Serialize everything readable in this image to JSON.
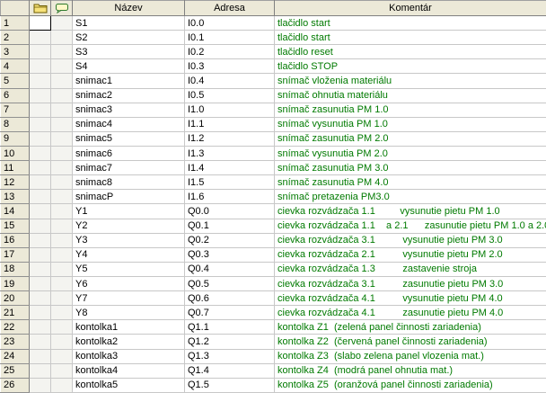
{
  "columns": {
    "name": "Název",
    "address": "Adresa",
    "comment": "Komentár"
  },
  "icons": {
    "col1": "folder-icon",
    "col2": "comment-icon"
  },
  "colors": {
    "comment_text": "#007a00",
    "header_bg": "#ece9d8"
  },
  "rows": [
    {
      "n": "1",
      "name": "S1",
      "addr": "I0.0",
      "comment": "tlačidlo start"
    },
    {
      "n": "2",
      "name": "S2",
      "addr": "I0.1",
      "comment": "tlačidlo start"
    },
    {
      "n": "3",
      "name": "S3",
      "addr": "I0.2",
      "comment": "tlačidlo reset"
    },
    {
      "n": "4",
      "name": "S4",
      "addr": "I0.3",
      "comment": "tlačidlo STOP"
    },
    {
      "n": "5",
      "name": "snimac1",
      "addr": "I0.4",
      "comment": "snímač vloženia materiálu"
    },
    {
      "n": "6",
      "name": "snimac2",
      "addr": "I0.5",
      "comment": "snímač ohnutia materiálu"
    },
    {
      "n": "7",
      "name": "snimac3",
      "addr": "I1.0",
      "comment": "snímač zasunutia PM 1.0"
    },
    {
      "n": "8",
      "name": "snimac4",
      "addr": "I1.1",
      "comment": "snímač vysunutia PM 1.0"
    },
    {
      "n": "9",
      "name": "snimac5",
      "addr": "I1.2",
      "comment": "snímač zasunutia PM 2.0"
    },
    {
      "n": "10",
      "name": "snimac6",
      "addr": "I1.3",
      "comment": "snímač vysunutia PM 2.0"
    },
    {
      "n": "11",
      "name": "snimac7",
      "addr": "I1.4",
      "comment": "snímač zasunutia PM 3.0"
    },
    {
      "n": "12",
      "name": "snimac8",
      "addr": "I1.5",
      "comment": "snímač zasunutia PM 4.0"
    },
    {
      "n": "13",
      "name": "snimacP",
      "addr": "I1.6",
      "comment": "snímač pretazenia PM3.0"
    },
    {
      "n": "14",
      "name": "Y1",
      "addr": "Q0.0",
      "comment": "cievka rozvádzača 1.1         vysunutie pietu PM 1.0"
    },
    {
      "n": "15",
      "name": "Y2",
      "addr": "Q0.1",
      "comment": "cievka rozvádzača 1.1    a 2.1      zasunutie pietu PM 1.0 a 2.0"
    },
    {
      "n": "16",
      "name": "Y3",
      "addr": "Q0.2",
      "comment": "cievka rozvádzača 3.1          vysunutie pietu PM 3.0"
    },
    {
      "n": "17",
      "name": "Y4",
      "addr": "Q0.3",
      "comment": "cievka rozvádzača 2.1          vysunutie pietu PM 2.0"
    },
    {
      "n": "18",
      "name": "Y5",
      "addr": "Q0.4",
      "comment": "cievka rozvádzača 1.3          zastavenie stroja"
    },
    {
      "n": "19",
      "name": "Y6",
      "addr": "Q0.5",
      "comment": "cievka rozvádzača 3.1          zasunutie pietu PM 3.0"
    },
    {
      "n": "20",
      "name": "Y7",
      "addr": "Q0.6",
      "comment": "cievka rozvádzača 4.1          vysunutie pietu PM 4.0"
    },
    {
      "n": "21",
      "name": "Y8",
      "addr": "Q0.7",
      "comment": "cievka rozvádzača 4.1          zasunutie pietu PM 4.0"
    },
    {
      "n": "22",
      "name": "kontolka1",
      "addr": "Q1.1",
      "comment": "kontolka Z1  (zelená panel činnosti zariadenia)"
    },
    {
      "n": "23",
      "name": "kontolka2",
      "addr": "Q1.2",
      "comment": "kontolka Z2  (červená panel činnosti zariadenia)"
    },
    {
      "n": "24",
      "name": "kontolka3",
      "addr": "Q1.3",
      "comment": "kontolka Z3  (slabo zelena panel vlozenia mat.)"
    },
    {
      "n": "25",
      "name": "kontolka4",
      "addr": "Q1.4",
      "comment": "kontolka Z4  (modrá panel ohnutia mat.)"
    },
    {
      "n": "26",
      "name": "kontolka5",
      "addr": "Q1.5",
      "comment": "kontolka Z5  (oranžová panel činnosti zariadenia)"
    }
  ]
}
